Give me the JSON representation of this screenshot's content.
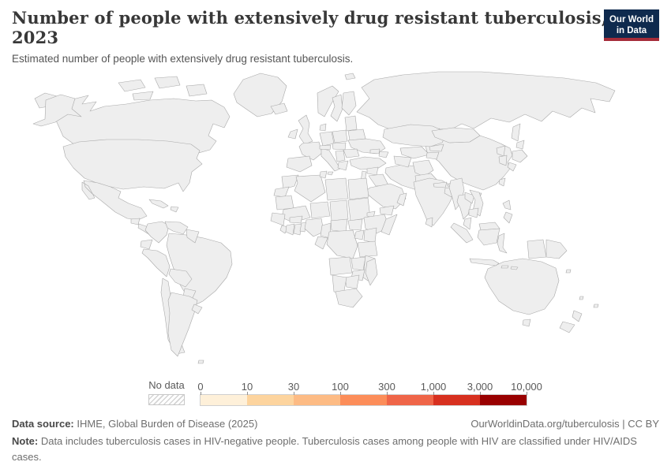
{
  "header": {
    "title": "Number of people with extensively drug resistant tuberculosis, 2023",
    "subtitle": "Estimated number of people with extensively drug resistant tuberculosis.",
    "logo": {
      "line1": "Our World",
      "line2": "in Data",
      "bg": "#0f2a4e",
      "accent": "#a52c39"
    }
  },
  "chart_data": {
    "type": "choropleth_map",
    "title": "Number of people with extensively drug resistant tuberculosis",
    "year": "2023",
    "unit": "people",
    "legend": {
      "no_data_label": "No data",
      "tick_labels": [
        "0",
        "10",
        "30",
        "100",
        "300",
        "1,000",
        "3,000",
        "10,000"
      ],
      "colors": [
        "#fef0d9",
        "#fdd49e",
        "#fdbb84",
        "#fc8d59",
        "#ef6548",
        "#d7301f",
        "#990000"
      ],
      "bin_ranges": [
        "0–10",
        "10–30",
        "30–100",
        "100–300",
        "300–1,000",
        "1,000–3,000",
        "3,000–10,000"
      ],
      "scale_type": "log-binned"
    },
    "countries": [
      {
        "id": "canada",
        "name": "Canada",
        "bin": 0
      },
      {
        "id": "greenland",
        "name": "Greenland",
        "bin": 0
      },
      {
        "id": "usa",
        "name": "United States",
        "bin": 1
      },
      {
        "id": "mexico",
        "name": "Mexico",
        "bin": 3
      },
      {
        "id": "guatemala",
        "name": "Guatemala",
        "bin": 2
      },
      {
        "id": "central-america",
        "name": "Central America",
        "bin": 1
      },
      {
        "id": "cuba",
        "name": "Cuba",
        "bin": 1
      },
      {
        "id": "hispaniola",
        "name": "Hispaniola",
        "bin": 2
      },
      {
        "id": "colombia",
        "name": "Colombia",
        "bin": 2
      },
      {
        "id": "venezuela",
        "name": "Venezuela",
        "bin": 2
      },
      {
        "id": "guyana",
        "name": "Guyana",
        "bin": 0
      },
      {
        "id": "ecuador",
        "name": "Ecuador",
        "bin": 2
      },
      {
        "id": "peru",
        "name": "Peru",
        "bin": 3
      },
      {
        "id": "brazil",
        "name": "Brazil",
        "bin": 3
      },
      {
        "id": "bolivia",
        "name": "Bolivia",
        "bin": 1
      },
      {
        "id": "paraguay",
        "name": "Paraguay",
        "bin": 1
      },
      {
        "id": "chile",
        "name": "Chile",
        "bin": 0
      },
      {
        "id": "argentina",
        "name": "Argentina",
        "bin": 1
      },
      {
        "id": "uruguay",
        "name": "Uruguay",
        "bin": 0
      },
      {
        "id": "falkland-islands",
        "name": "Falkland Islands",
        "bin": 0
      },
      {
        "id": "iceland",
        "name": "Iceland",
        "bin": 0
      },
      {
        "id": "ireland",
        "name": "Ireland",
        "bin": 0
      },
      {
        "id": "uk",
        "name": "United Kingdom",
        "bin": 1
      },
      {
        "id": "norway",
        "name": "Norway",
        "bin": 0
      },
      {
        "id": "sweden",
        "name": "Sweden",
        "bin": 0
      },
      {
        "id": "finland",
        "name": "Finland",
        "bin": 0
      },
      {
        "id": "denmark",
        "name": "Denmark",
        "bin": 0
      },
      {
        "id": "germany",
        "name": "Germany",
        "bin": 1
      },
      {
        "id": "france",
        "name": "France",
        "bin": 1
      },
      {
        "id": "spain",
        "name": "Spain",
        "bin": 1
      },
      {
        "id": "italy",
        "name": "Italy",
        "bin": 0
      },
      {
        "id": "alpine",
        "name": "Austria and Switzerland",
        "bin": 1
      },
      {
        "id": "central-europe",
        "name": "Czechia and Hungary",
        "bin": 1
      },
      {
        "id": "poland",
        "name": "Poland",
        "bin": 1
      },
      {
        "id": "baltics",
        "name": "Baltic states",
        "bin": 3
      },
      {
        "id": "belarus",
        "name": "Belarus",
        "bin": 4
      },
      {
        "id": "ukraine",
        "name": "Ukraine",
        "bin": 5
      },
      {
        "id": "romania",
        "name": "Romania",
        "bin": 3
      },
      {
        "id": "balkans",
        "name": "Balkans",
        "bin": 2
      },
      {
        "id": "greece",
        "name": "Greece",
        "bin": 2
      },
      {
        "id": "turkey",
        "name": "Turkey",
        "bin": 2
      },
      {
        "id": "georgia",
        "name": "Georgia",
        "bin": 3
      },
      {
        "id": "azerbaijan",
        "name": "Azerbaijan",
        "bin": 4
      },
      {
        "id": "syria",
        "name": "Syria",
        "bin": 2
      },
      {
        "id": "levant",
        "name": "Jordan and Israel",
        "bin": 1
      },
      {
        "id": "iraq",
        "name": "Iraq",
        "bin": 2
      },
      {
        "id": "iran",
        "name": "Iran",
        "bin": 0
      },
      {
        "id": "saudi-arabia",
        "name": "Saudi Arabia",
        "bin": 1
      },
      {
        "id": "yemen",
        "name": "Yemen",
        "bin": 2
      },
      {
        "id": "oman",
        "name": "Oman",
        "bin": 1
      },
      {
        "id": "kazakhstan",
        "name": "Kazakhstan",
        "bin": 4
      },
      {
        "id": "uzbekistan",
        "name": "Uzbekistan",
        "bin": 4
      },
      {
        "id": "turkmenistan",
        "name": "Turkmenistan",
        "bin": 3
      },
      {
        "id": "kyrgyzstan",
        "name": "Kyrgyzstan",
        "bin": 4
      },
      {
        "id": "tajikistan",
        "name": "Tajikistan",
        "bin": 5
      },
      {
        "id": "afghanistan",
        "name": "Afghanistan",
        "bin": 5
      },
      {
        "id": "pakistan",
        "name": "Pakistan",
        "bin": 5
      },
      {
        "id": "russia",
        "name": "Russia",
        "bin": 6
      },
      {
        "id": "mongolia",
        "name": "Mongolia",
        "bin": 1
      },
      {
        "id": "china",
        "name": "China",
        "bin": 6
      },
      {
        "id": "north-korea",
        "name": "North Korea",
        "bin": 4
      },
      {
        "id": "south-korea",
        "name": "South Korea",
        "bin": 1
      },
      {
        "id": "japan",
        "name": "Japan",
        "bin": 1
      },
      {
        "id": "taiwan",
        "name": "Taiwan",
        "bin": 6
      },
      {
        "id": "india",
        "name": "India",
        "bin": 6
      },
      {
        "id": "nepal",
        "name": "Nepal",
        "bin": 5
      },
      {
        "id": "bhutan",
        "name": "Bhutan",
        "bin": 0
      },
      {
        "id": "bangladesh",
        "name": "Bangladesh",
        "bin": 5
      },
      {
        "id": "sri-lanka",
        "name": "Sri Lanka",
        "bin": 0
      },
      {
        "id": "myanmar",
        "name": "Myanmar",
        "bin": 6
      },
      {
        "id": "thailand",
        "name": "Thailand",
        "bin": 4
      },
      {
        "id": "laos",
        "name": "Laos",
        "bin": 1
      },
      {
        "id": "vietnam",
        "name": "Vietnam",
        "bin": 4
      },
      {
        "id": "cambodia",
        "name": "Cambodia",
        "bin": 4
      },
      {
        "id": "malaysia",
        "name": "Malaysia",
        "bin": 3
      },
      {
        "id": "indonesia",
        "name": "Indonesia",
        "bin": 4
      },
      {
        "id": "philippines",
        "name": "Philippines",
        "bin": 5
      },
      {
        "id": "papua-new-guinea",
        "name": "Papua New Guinea",
        "bin": 3
      },
      {
        "id": "morocco",
        "name": "Morocco",
        "bin": 1
      },
      {
        "id": "western-sahara",
        "name": "Western Sahara",
        "bin": -1
      },
      {
        "id": "algeria",
        "name": "Algeria",
        "bin": 1
      },
      {
        "id": "tunisia",
        "name": "Tunisia",
        "bin": 1
      },
      {
        "id": "libya",
        "name": "Libya",
        "bin": 1
      },
      {
        "id": "egypt",
        "name": "Egypt",
        "bin": 2
      },
      {
        "id": "mauritania",
        "name": "Mauritania",
        "bin": 0
      },
      {
        "id": "mali",
        "name": "Mali",
        "bin": 1
      },
      {
        "id": "niger",
        "name": "Niger",
        "bin": 1
      },
      {
        "id": "chad",
        "name": "Chad",
        "bin": 1
      },
      {
        "id": "sudan",
        "name": "Sudan",
        "bin": 2
      },
      {
        "id": "eritrea",
        "name": "Eritrea",
        "bin": 2
      },
      {
        "id": "senegal",
        "name": "Senegal",
        "bin": 1
      },
      {
        "id": "sierra-leone",
        "name": "Sierra Leone",
        "bin": 0
      },
      {
        "id": "ivory-coast",
        "name": "Côte d'Ivoire",
        "bin": 2
      },
      {
        "id": "ghana",
        "name": "Ghana",
        "bin": 1
      },
      {
        "id": "benin",
        "name": "Benin",
        "bin": 1
      },
      {
        "id": "burkina-faso",
        "name": "Burkina Faso",
        "bin": 1
      },
      {
        "id": "nigeria",
        "name": "Nigeria",
        "bin": 4
      },
      {
        "id": "cameroon",
        "name": "Cameroon",
        "bin": 1
      },
      {
        "id": "car",
        "name": "Central African Republic",
        "bin": 1
      },
      {
        "id": "south-sudan",
        "name": "South Sudan",
        "bin": 2
      },
      {
        "id": "ethiopia",
        "name": "Ethiopia",
        "bin": 3
      },
      {
        "id": "somalia",
        "name": "Somalia",
        "bin": 2
      },
      {
        "id": "gabon",
        "name": "Gabon",
        "bin": 0
      },
      {
        "id": "drc",
        "name": "Democratic Republic of Congo",
        "bin": 3
      },
      {
        "id": "uganda",
        "name": "Uganda",
        "bin": 2
      },
      {
        "id": "kenya",
        "name": "Kenya",
        "bin": 1
      },
      {
        "id": "tanzania",
        "name": "Tanzania",
        "bin": 2
      },
      {
        "id": "angola",
        "name": "Angola",
        "bin": 2
      },
      {
        "id": "zambia",
        "name": "Zambia",
        "bin": 1
      },
      {
        "id": "mozambique",
        "name": "Mozambique",
        "bin": 2
      },
      {
        "id": "zimbabwe",
        "name": "Zimbabwe",
        "bin": 1
      },
      {
        "id": "botswana",
        "name": "Botswana",
        "bin": 0
      },
      {
        "id": "namibia",
        "name": "Namibia",
        "bin": 0
      },
      {
        "id": "south-africa",
        "name": "South Africa",
        "bin": 2
      },
      {
        "id": "madagascar",
        "name": "Madagascar",
        "bin": 2
      },
      {
        "id": "australia",
        "name": "Australia",
        "bin": 0
      },
      {
        "id": "new-zealand",
        "name": "New Zealand",
        "bin": 0
      },
      {
        "id": "pacific-islands",
        "name": "Pacific islands",
        "bin": 0
      }
    ]
  },
  "footer": {
    "source_label": "Data source:",
    "source": " IHME, Global Burden of Disease (2025)",
    "link": "OurWorldinData.org/tuberculosis | CC BY",
    "note_label": "Note:",
    "note": " Data includes tuberculosis cases in HIV-negative people. Tuberculosis cases among people with HIV are classified under HIV/AIDS cases."
  }
}
